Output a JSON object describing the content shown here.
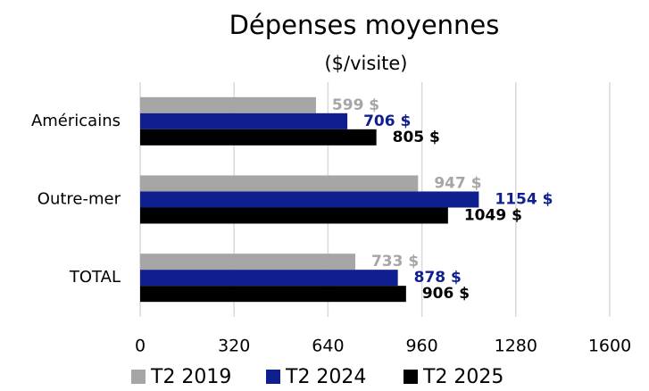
{
  "chart_data": {
    "type": "barh",
    "title": "Dépenses moyennes",
    "subtitle": "($/visite)",
    "categories": [
      "Américains",
      "Outre-mer",
      "TOTAL"
    ],
    "series": [
      {
        "name": "T2 2019",
        "color": "#a6a6a6",
        "values": [
          599,
          947,
          733
        ],
        "value_labels": [
          "599 $",
          "947 $",
          "733 $"
        ]
      },
      {
        "name": "T2 2024",
        "color": "#0f1f8f",
        "values": [
          706,
          1154,
          878
        ],
        "value_labels": [
          "706 $",
          "1154 $",
          "878 $"
        ]
      },
      {
        "name": "T2 2025",
        "color": "#000000",
        "values": [
          805,
          1049,
          906
        ],
        "value_labels": [
          "805 $",
          "1049 $",
          "906 $"
        ]
      }
    ],
    "xlim": [
      0,
      1600
    ],
    "xticks": [
      0,
      320,
      640,
      960,
      1280,
      1600
    ],
    "grid": true
  }
}
